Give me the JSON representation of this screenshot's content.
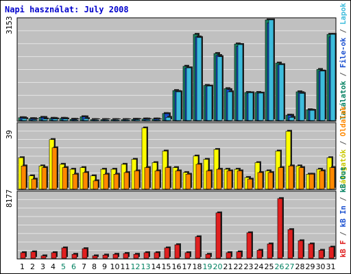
{
  "chart_data": {
    "type": "bar",
    "title": "Napi használat: July 2008",
    "categories": [
      "1",
      "2",
      "3",
      "4",
      "5",
      "6",
      "7",
      "8",
      "9",
      "10",
      "11",
      "12",
      "13",
      "14",
      "15",
      "16",
      "17",
      "18",
      "19",
      "20",
      "21",
      "22",
      "23",
      "24",
      "25",
      "26",
      "27",
      "28",
      "29",
      "30",
      "31"
    ],
    "weekend_days": [
      "5",
      "6",
      "12",
      "13",
      "19",
      "20",
      "26",
      "27"
    ],
    "colors": {
      "title": "#0000cc",
      "axis_weekday": "#000000",
      "axis_weekend": "#008060",
      "panel_bg": "#c0c0c0",
      "grid": "#e6e6e6",
      "visits": "#ffff00",
      "pages": "#3dbcdc",
      "hits": "#2090e0",
      "files": "#1a4fd0",
      "tlds": "#1a8060",
      "kb_out": "#ff8800",
      "kb_in": "#1a4fd0",
      "kb_f": "#e02020"
    },
    "panels": [
      {
        "id": "hits-files",
        "ymax_label": "3153",
        "ymax": 3153,
        "legend": [
          {
            "text": "Találatok",
            "color": "#008060"
          },
          {
            "text": " / ",
            "color": "#555555"
          },
          {
            "text": "File-ok",
            "color": "#1a4fd0"
          },
          {
            "text": " / ",
            "color": "#555555"
          },
          {
            "text": "Lapok",
            "color": "#3dbcdc"
          }
        ],
        "series": [
          {
            "name": "Találatok",
            "values": [
              90,
              60,
              100,
              70,
              70,
              40,
              120,
              30,
              30,
              30,
              30,
              40,
              50,
              50,
              220,
              940,
              1700,
              2700,
              1100,
              2100,
              1000,
              2400,
              880,
              880,
              3153,
              1800,
              170,
              900,
              340,
              1600,
              2700
            ]
          },
          {
            "name": "File-ok",
            "values": [
              90,
              60,
              100,
              70,
              70,
              40,
              120,
              30,
              30,
              30,
              30,
              40,
              50,
              50,
              220,
              940,
              1700,
              2700,
              1100,
              2100,
              1000,
              2400,
              880,
              880,
              3153,
              1800,
              170,
              900,
              340,
              1600,
              2700
            ]
          },
          {
            "name": "Lapok",
            "values": [
              60,
              30,
              50,
              50,
              50,
              20,
              60,
              10,
              10,
              10,
              10,
              30,
              30,
              20,
              100,
              900,
              1650,
              2600,
              1080,
              2000,
              900,
              2380,
              870,
              860,
              3153,
              1750,
              100,
              850,
              320,
              1550,
              2700
            ]
          }
        ]
      },
      {
        "id": "visits-sites",
        "ymax_label": "39",
        "ymax": 39,
        "legend": [
          {
            "text": "Látogatók",
            "color": "#c8c800"
          },
          {
            "text": " / ",
            "color": "#555555"
          },
          {
            "text": "Oldalak",
            "color": "#ff8800"
          }
        ],
        "series": [
          {
            "name": "Látogatók",
            "values": [
              19,
              8,
              14,
              30,
              15,
              12,
              13,
              8,
              12,
              12,
              15,
              18,
              37,
              16,
              23,
              13,
              10,
              20,
              18,
              24,
              12,
              12,
              7,
              16,
              11,
              23,
              35,
              14,
              9,
              12,
              19
            ]
          },
          {
            "name": "Oldalak",
            "values": [
              14,
              6,
              13,
              25,
              13,
              9,
              10,
              5,
              9,
              9,
              10,
              11,
              13,
              11,
              13,
              11,
              9,
              15,
              11,
              12,
              11,
              11,
              6,
              10,
              10,
              13,
              14,
              13,
              9,
              11,
              13
            ]
          }
        ]
      },
      {
        "id": "kbytes",
        "ymax_label": "8177",
        "ymax": 8177,
        "legend": [
          {
            "text": "kB F",
            "color": "#e02020"
          },
          {
            "text": " / ",
            "color": "#555555"
          },
          {
            "text": "kB In",
            "color": "#1a4fd0"
          },
          {
            "text": " / ",
            "color": "#555555"
          },
          {
            "text": "kB Out",
            "color": "#008060"
          }
        ],
        "series": [
          {
            "name": "kB F",
            "values": [
              700,
              800,
              300,
              700,
              1300,
              500,
              1200,
              300,
              400,
              500,
              600,
              500,
              700,
              700,
              1300,
              1700,
              700,
              2700,
              500,
              5700,
              700,
              800,
              3200,
              1000,
              1800,
              7500,
              3600,
              2200,
              1800,
              1000,
              1400
            ]
          }
        ]
      }
    ]
  }
}
